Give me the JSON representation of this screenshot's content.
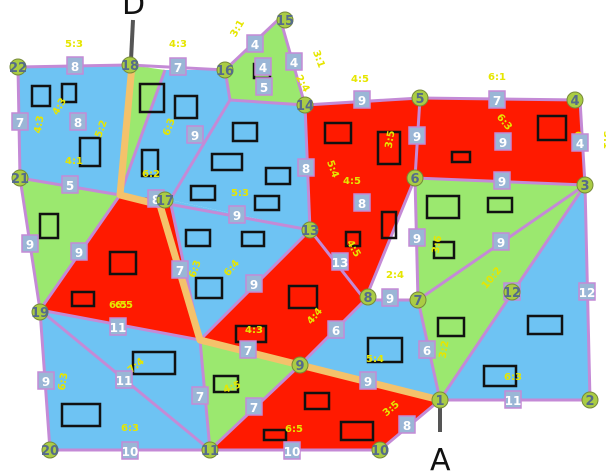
{
  "colors": {
    "blue": "#6ec3f3",
    "green": "#9be86f",
    "red": "#ff1a00",
    "edge": "#c48ad6",
    "path": "#f4c26b",
    "node": "#aacc44"
  },
  "labels": {
    "start": "A",
    "end": "D"
  },
  "vertices": [
    {
      "id": "v22",
      "text": "22"
    },
    {
      "id": "v18",
      "text": "18"
    },
    {
      "id": "v16",
      "text": "16"
    },
    {
      "id": "v15",
      "text": "15"
    },
    {
      "id": "v14",
      "text": "14"
    },
    {
      "id": "v5",
      "text": "5"
    },
    {
      "id": "v4",
      "text": "4"
    },
    {
      "id": "v21",
      "text": "21"
    },
    {
      "id": "v17",
      "text": "17"
    },
    {
      "id": "v6",
      "text": "6"
    },
    {
      "id": "v3",
      "text": "3"
    },
    {
      "id": "v13",
      "text": "13"
    },
    {
      "id": "v19",
      "text": "19"
    },
    {
      "id": "v8",
      "text": "8"
    },
    {
      "id": "v7",
      "text": "7"
    },
    {
      "id": "v12",
      "text": "12"
    },
    {
      "id": "v9",
      "text": "9"
    },
    {
      "id": "v1",
      "text": "1"
    },
    {
      "id": "v2",
      "text": "2"
    },
    {
      "id": "v20",
      "text": "20"
    },
    {
      "id": "v11",
      "text": "11"
    },
    {
      "id": "v10",
      "text": "10"
    }
  ],
  "weights": [
    "8",
    "7",
    "4",
    "4",
    "5",
    "9",
    "7",
    "4",
    "7",
    "8",
    "9",
    "8",
    "9",
    "9",
    "5",
    "9",
    "8",
    "9",
    "9",
    "9",
    "7",
    "9",
    "13",
    "9",
    "9",
    "9",
    "6",
    "12",
    "12",
    "11",
    "6",
    "11",
    "9",
    "7",
    "7",
    "9",
    "8",
    "11",
    "10",
    "10",
    "4",
    "8",
    "7"
  ],
  "ratios": [
    "5:3",
    "4:3",
    "3:1",
    "3:1",
    "4:5",
    "6:1",
    "4:3",
    "4:3",
    "5:2",
    "6:3",
    "6:2",
    "3:5",
    "5:4",
    "6:3",
    "4:1",
    "2:4",
    "5:3",
    "4:5",
    "6:4",
    "6:5",
    "3:6",
    "4:5",
    "4:4",
    "2:4",
    "6:4",
    "4:3",
    "6:5",
    "7:4",
    "10:2",
    "6:3",
    "3:2",
    "5:4",
    "4:5",
    "6:3",
    "6:3",
    "3:5",
    "6:5",
    "6:3",
    "3:1"
  ]
}
